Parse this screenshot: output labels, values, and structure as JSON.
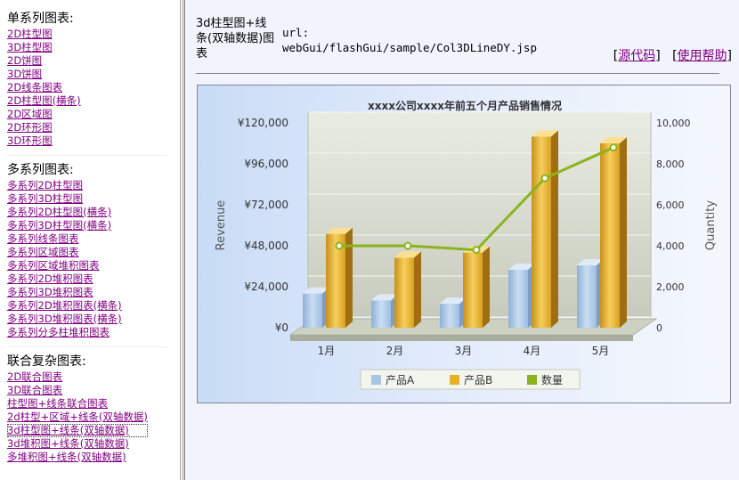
{
  "sidebar": {
    "single": {
      "title": "单系列图表:",
      "items": [
        "2D柱型图",
        "3D柱型图",
        "2D饼图",
        "3D饼图",
        "2D线条图表",
        "2D柱型图(横条)",
        "2D区域图",
        "2D环形图",
        "3D环形图"
      ]
    },
    "multi": {
      "title": "多系列图表:",
      "items": [
        "多系列2D柱型图",
        "多系列3D柱型图",
        "多系列2D柱型图(横条)",
        "多系列3D柱型图(横条)",
        "多系列线条图表",
        "多系列区域图表",
        "多系列区域堆积图表",
        "多系列2D堆积图表",
        "多系列3D堆积图表",
        "多系列2D堆积图表(横条)",
        "多系列3D堆积图表(横条)",
        "多系列分多柱堆积图表"
      ]
    },
    "combo": {
      "title": "联合复杂图表:",
      "items": [
        "2D联合图表",
        "3D联合图表",
        "柱型图+线条联合图表",
        "2d柱型+区域+线条(双轴数据)",
        "3d柱型图+线条(双轴数据)",
        "3d堆积图+线条(双轴数据)",
        "多堆积图+线条(双轴数据)"
      ],
      "active_index": 4
    }
  },
  "header": {
    "title": "3d柱型图+线条(双轴数据)图表",
    "url_label": "url:",
    "url": "webGui/flashGui/sample/Col3DLineDY.jsp",
    "source_link": "源代码",
    "help_link": "使用帮助",
    "bracket_open": "[",
    "bracket_close": "]"
  },
  "colors": {
    "link": "#800080",
    "series_a": "#a8c6e4",
    "series_b": "#e8b02a",
    "line": "#8cb31e"
  },
  "chart_data": {
    "type": "bar+line",
    "title": "xxxx公司xxxx年前五个月产品销售情况",
    "categories": [
      "1月",
      "2月",
      "3月",
      "4月",
      "5月"
    ],
    "series": [
      {
        "name": "产品A",
        "axis": "left",
        "values": [
          20000,
          16000,
          14000,
          34000,
          36500
        ]
      },
      {
        "name": "产品B",
        "axis": "left",
        "values": [
          55000,
          41000,
          44000,
          112000,
          108000
        ]
      },
      {
        "name": "数量",
        "axis": "right",
        "type": "line",
        "values": [
          4000,
          4000,
          3800,
          7300,
          8800
        ]
      }
    ],
    "ylabel": "Revenue",
    "y2label": "Quantity",
    "ylim": [
      0,
      120000
    ],
    "y2lim": [
      0,
      10000
    ],
    "y_ticks": [
      "¥0",
      "¥24,000",
      "¥48,000",
      "¥72,000",
      "¥96,000",
      "¥120,000"
    ],
    "y2_ticks": [
      "0",
      "2,000",
      "4,000",
      "6,000",
      "8,000",
      "10,000"
    ],
    "legend": "bottom",
    "grid": true
  }
}
